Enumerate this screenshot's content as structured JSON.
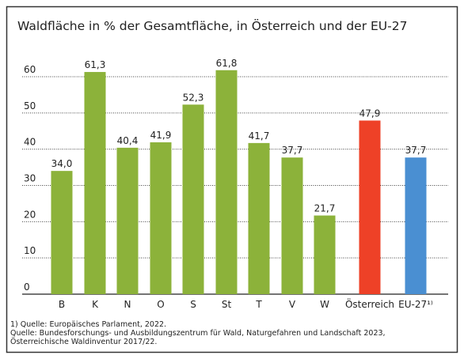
{
  "chart_data": {
    "type": "bar",
    "title": "Waldfläche in % der Gesamtfläche, in Österreich und der EU-27",
    "categories": [
      "B",
      "K",
      "N",
      "O",
      "S",
      "St",
      "T",
      "V",
      "W",
      "Österreich",
      "EU-27¹⁾"
    ],
    "values": [
      34.0,
      61.3,
      40.4,
      41.9,
      52.3,
      61.8,
      41.7,
      37.7,
      21.7,
      47.9,
      37.7
    ],
    "value_labels": [
      "34,0",
      "61,3",
      "40,4",
      "41,9",
      "52,3",
      "61,8",
      "41,7",
      "37,7",
      "21,7",
      "47,9",
      "37,7"
    ],
    "colors": [
      "#8cb23a",
      "#8cb23a",
      "#8cb23a",
      "#8cb23a",
      "#8cb23a",
      "#8cb23a",
      "#8cb23a",
      "#8cb23a",
      "#8cb23a",
      "#ee4127",
      "#4a8fd2"
    ],
    "ylim": [
      0,
      60
    ],
    "yticks": [
      0,
      10,
      20,
      30,
      40,
      50,
      60
    ],
    "grid": true,
    "notes": [
      "1) Quelle: Europäisches Parlament, 2022.",
      "Quelle: Bundesforschungs- und Ausbildungszentrum für Wald, Naturgefahren und Landschaft 2023,",
      "Österreichische Waldinventur 2017/22."
    ]
  }
}
